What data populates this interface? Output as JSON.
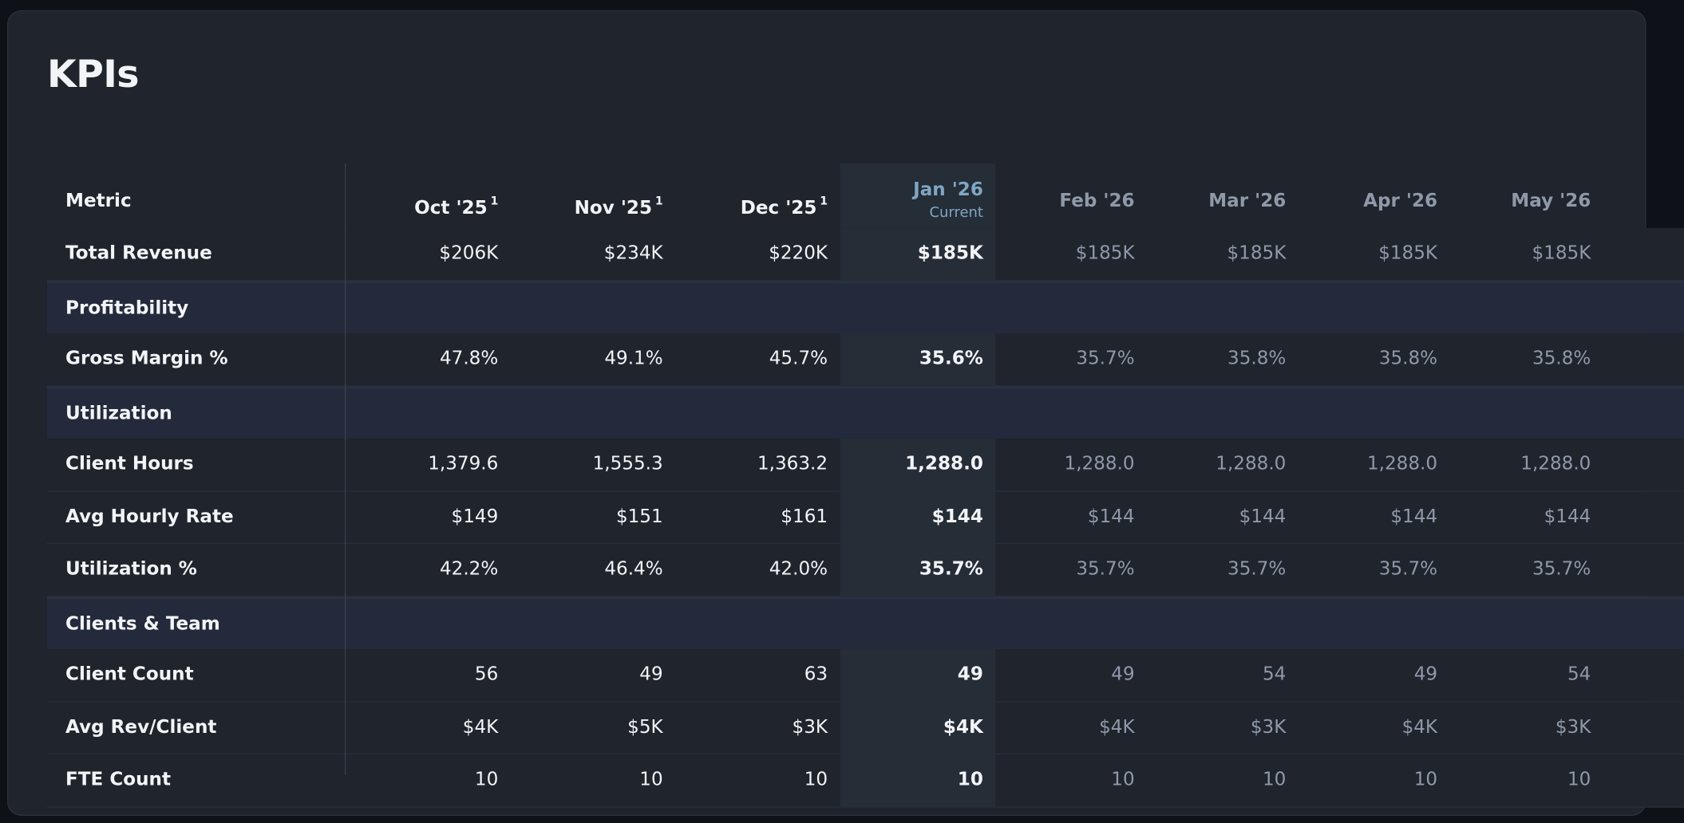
{
  "header": {
    "title": "KPIs"
  },
  "table": {
    "columns": [
      {
        "label": "Metric"
      },
      {
        "label": "Oct '25",
        "note": "1"
      },
      {
        "label": "Nov '25",
        "note": "1"
      },
      {
        "label": "Dec '25",
        "note": "1"
      },
      {
        "label": "Jan '26",
        "sublabel": "Current"
      },
      {
        "label": "Feb '26"
      },
      {
        "label": "Mar '26"
      },
      {
        "label": "Apr '26"
      },
      {
        "label": "May '26"
      }
    ],
    "rows": [
      {
        "label": "Total Revenue",
        "values": [
          "$206K",
          "$234K",
          "$220K",
          "$185K",
          "$185K",
          "$185K",
          "$185K",
          "$185K"
        ]
      },
      {
        "section": "Profitability"
      },
      {
        "label": "Gross Margin %",
        "values": [
          "47.8%",
          "49.1%",
          "45.7%",
          "35.6%",
          "35.7%",
          "35.8%",
          "35.8%",
          "35.8%"
        ]
      },
      {
        "section": "Utilization"
      },
      {
        "label": "Client Hours",
        "values": [
          "1,379.6",
          "1,555.3",
          "1,363.2",
          "1,288.0",
          "1,288.0",
          "1,288.0",
          "1,288.0",
          "1,288.0"
        ]
      },
      {
        "label": "Avg Hourly Rate",
        "values": [
          "$149",
          "$151",
          "$161",
          "$144",
          "$144",
          "$144",
          "$144",
          "$144"
        ]
      },
      {
        "label": "Utilization %",
        "values": [
          "42.2%",
          "46.4%",
          "42.0%",
          "35.7%",
          "35.7%",
          "35.7%",
          "35.7%",
          "35.7%"
        ]
      },
      {
        "section": "Clients & Team"
      },
      {
        "label": "Client Count",
        "values": [
          "56",
          "49",
          "63",
          "49",
          "49",
          "54",
          "49",
          "54"
        ]
      },
      {
        "label": "Avg Rev/Client",
        "values": [
          "$4K",
          "$5K",
          "$3K",
          "$4K",
          "$4K",
          "$3K",
          "$4K",
          "$3K"
        ]
      },
      {
        "label": "FTE Count",
        "values": [
          "10",
          "10",
          "10",
          "10",
          "10",
          "10",
          "10",
          "10"
        ]
      }
    ]
  }
}
